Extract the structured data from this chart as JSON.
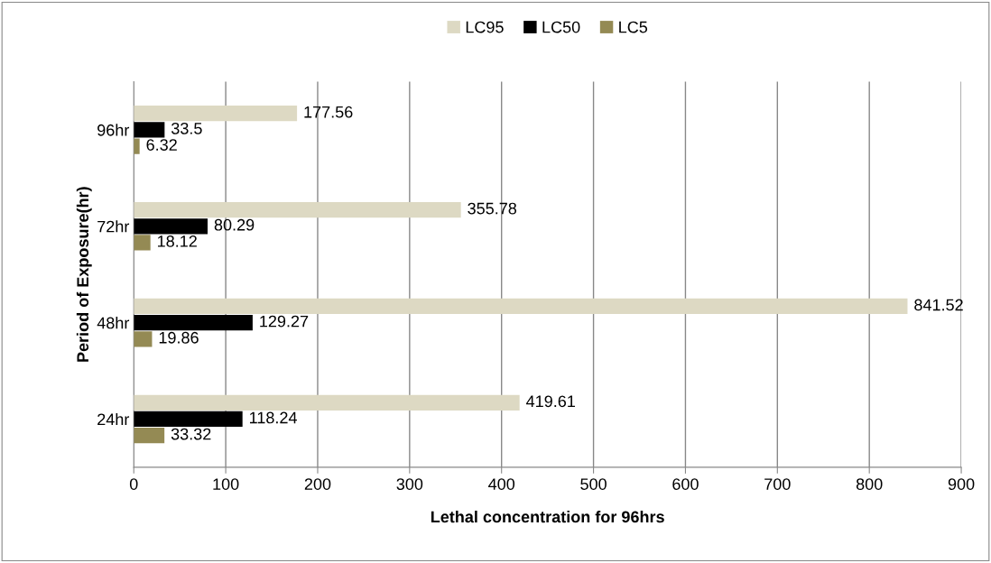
{
  "chart_data": {
    "type": "bar",
    "orientation": "horizontal",
    "xlabel": "Lethal concentration for 96hrs",
    "ylabel": "Period of Exposure(hr)",
    "categories": [
      "96hr",
      "72hr",
      "48hr",
      "24hr"
    ],
    "series": [
      {
        "name": "LC95",
        "color": "#ddd9c3",
        "values": [
          177.56,
          355.78,
          841.52,
          419.61
        ]
      },
      {
        "name": "LC50",
        "color": "#000000",
        "values": [
          33.5,
          80.29,
          129.27,
          118.24
        ]
      },
      {
        "name": "LC5",
        "color": "#948a54",
        "values": [
          6.32,
          18.12,
          19.86,
          33.32
        ]
      }
    ],
    "xlim": [
      0,
      900
    ],
    "xticks": [
      0,
      100,
      200,
      300,
      400,
      500,
      600,
      700,
      800,
      900
    ],
    "grid": "x",
    "legend": "top",
    "data_labels": true
  }
}
